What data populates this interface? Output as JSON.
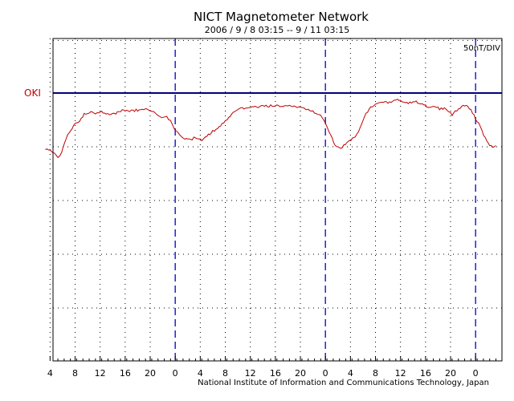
{
  "chart_data": {
    "type": "line",
    "title": "NICT Magnetometer Network",
    "subtitle": "2006 / 9 / 8   03:15 -- 9 / 11   03:15",
    "credit": "National Institute of Information and Communications Technology, Japan",
    "scale_label": "50nT/DIV",
    "station": "OKI",
    "x_unit": "hours since 2006-09-08 03:15",
    "xlim": [
      0,
      72
    ],
    "ylim": [
      -5.17,
      1.0
    ],
    "y_unit": "divisions (50 nT/DIV) relative to OKI baseline",
    "baseline_value": 0,
    "tick_labels": [
      "4",
      "8",
      "12",
      "16",
      "20",
      "0",
      "4",
      "8",
      "12",
      "16",
      "20",
      "0",
      "4",
      "8",
      "12",
      "16",
      "20",
      "0"
    ],
    "tick_hours": [
      0.75,
      4.75,
      8.75,
      12.75,
      16.75,
      20.75,
      24.75,
      28.75,
      32.75,
      36.75,
      40.75,
      44.75,
      48.75,
      52.75,
      56.75,
      60.75,
      64.75,
      68.75
    ],
    "midnight_hours": [
      20.75,
      44.75,
      68.75
    ],
    "grid_y": [
      -1,
      -2,
      -3,
      -4
    ],
    "grid": true,
    "colors": {
      "line": "#c00000",
      "baseline": "#000080",
      "midnight": "#0000cc",
      "station": "#c00000"
    },
    "series": [
      {
        "name": "OKI",
        "points": [
          [
            0,
            -1.03
          ],
          [
            0.5,
            -1.05
          ],
          [
            1.2,
            -1.1
          ],
          [
            2,
            -1.18
          ],
          [
            2.6,
            -1.12
          ],
          [
            3.3,
            -0.85
          ],
          [
            4,
            -0.7
          ],
          [
            4.8,
            -0.57
          ],
          [
            5.5,
            -0.5
          ],
          [
            6.2,
            -0.4
          ],
          [
            7,
            -0.36
          ],
          [
            8,
            -0.38
          ],
          [
            9,
            -0.34
          ],
          [
            9.7,
            -0.4
          ],
          [
            10.5,
            -0.41
          ],
          [
            11.5,
            -0.37
          ],
          [
            12.3,
            -0.32
          ],
          [
            13.2,
            -0.34
          ],
          [
            14,
            -0.33
          ],
          [
            15,
            -0.31
          ],
          [
            16,
            -0.31
          ],
          [
            17,
            -0.34
          ],
          [
            17.8,
            -0.41
          ],
          [
            18.6,
            -0.46
          ],
          [
            19.4,
            -0.44
          ],
          [
            20,
            -0.52
          ],
          [
            20.75,
            -0.68
          ],
          [
            21.5,
            -0.78
          ],
          [
            22.3,
            -0.84
          ],
          [
            23.2,
            -0.88
          ],
          [
            24,
            -0.82
          ],
          [
            24.5,
            -0.85
          ],
          [
            25,
            -0.88
          ],
          [
            25.6,
            -0.82
          ],
          [
            26.5,
            -0.74
          ],
          [
            27.5,
            -0.64
          ],
          [
            28.5,
            -0.56
          ],
          [
            29.3,
            -0.46
          ],
          [
            30,
            -0.38
          ],
          [
            31,
            -0.3
          ],
          [
            32,
            -0.27
          ],
          [
            33,
            -0.25
          ],
          [
            34,
            -0.26
          ],
          [
            35,
            -0.25
          ],
          [
            36,
            -0.24
          ],
          [
            37,
            -0.24
          ],
          [
            38,
            -0.25
          ],
          [
            39,
            -0.24
          ],
          [
            40,
            -0.26
          ],
          [
            41,
            -0.29
          ],
          [
            42,
            -0.3
          ],
          [
            43,
            -0.36
          ],
          [
            44,
            -0.42
          ],
          [
            44.75,
            -0.58
          ],
          [
            45.6,
            -0.78
          ],
          [
            46.3,
            -0.97
          ],
          [
            47,
            -1.02
          ],
          [
            47.7,
            -0.98
          ],
          [
            48.6,
            -0.9
          ],
          [
            49.5,
            -0.82
          ],
          [
            50.3,
            -0.66
          ],
          [
            51,
            -0.42
          ],
          [
            52,
            -0.27
          ],
          [
            53,
            -0.2
          ],
          [
            54,
            -0.17
          ],
          [
            55,
            -0.18
          ],
          [
            56,
            -0.13
          ],
          [
            57,
            -0.15
          ],
          [
            58,
            -0.19
          ],
          [
            59,
            -0.15
          ],
          [
            60,
            -0.19
          ],
          [
            61,
            -0.25
          ],
          [
            62,
            -0.26
          ],
          [
            63,
            -0.29
          ],
          [
            64,
            -0.28
          ],
          [
            65,
            -0.4
          ],
          [
            66,
            -0.3
          ],
          [
            67,
            -0.23
          ],
          [
            68,
            -0.3
          ],
          [
            68.75,
            -0.48
          ],
          [
            69.5,
            -0.62
          ],
          [
            70.3,
            -0.85
          ],
          [
            71,
            -0.98
          ],
          [
            71.5,
            -1.0
          ],
          [
            72,
            -0.98
          ]
        ]
      }
    ]
  }
}
